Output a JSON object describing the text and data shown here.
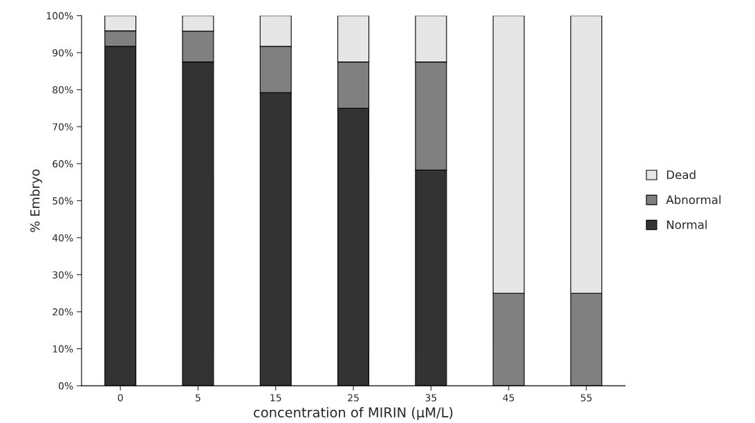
{
  "chart_data": {
    "type": "bar",
    "stacked": true,
    "xlabel": "concentration of MIRIN (μM/L)",
    "ylabel": "% Embryo",
    "categories": [
      "0",
      "5",
      "15",
      "25",
      "35",
      "45",
      "55"
    ],
    "series": [
      {
        "name": "Normal",
        "color": "#333333",
        "values": [
          91.7,
          87.5,
          79.2,
          75,
          58.3,
          0,
          0
        ]
      },
      {
        "name": "Abnormal",
        "color": "#808080",
        "values": [
          4.2,
          8.3,
          12.5,
          12.5,
          29.2,
          25,
          25
        ]
      },
      {
        "name": "Dead",
        "color": "#e6e6e6",
        "values": [
          4.1,
          4.2,
          8.3,
          12.5,
          12.5,
          75,
          75
        ]
      }
    ],
    "ylim": [
      0,
      100
    ],
    "yticks": [
      {
        "value": 0,
        "label": "0%"
      },
      {
        "value": 10,
        "label": "10%"
      },
      {
        "value": 20,
        "label": "20%"
      },
      {
        "value": 30,
        "label": "30%"
      },
      {
        "value": 40,
        "label": "40%"
      },
      {
        "value": 50,
        "label": "50%"
      },
      {
        "value": 60,
        "label": "60%"
      },
      {
        "value": 70,
        "label": "70%"
      },
      {
        "value": 80,
        "label": "80%"
      },
      {
        "value": 90,
        "label": "90%"
      },
      {
        "value": 100,
        "label": "100%"
      }
    ],
    "grid": false,
    "legend": "right"
  }
}
